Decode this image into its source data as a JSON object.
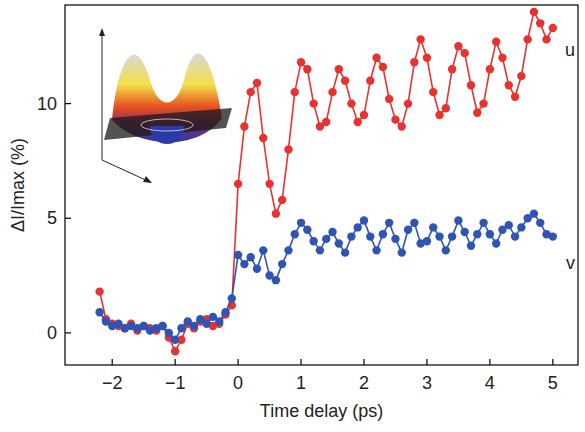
{
  "chart_data": {
    "type": "line",
    "x_label": "Time delay (ps)",
    "y_label": "ΔI/Imax (%)",
    "xlim": [
      -2.75,
      5.4
    ],
    "ylim": [
      -1.4,
      14.3
    ],
    "xticks": [
      -2,
      -1,
      0,
      1,
      2,
      3,
      4,
      5
    ],
    "yticks": [
      0,
      5,
      10
    ],
    "grid": false,
    "marker": "circle",
    "x": [
      -2.2,
      -2.1,
      -2.0,
      -1.9,
      -1.8,
      -1.7,
      -1.6,
      -1.5,
      -1.4,
      -1.3,
      -1.2,
      -1.1,
      -1.0,
      -0.9,
      -0.8,
      -0.7,
      -0.6,
      -0.5,
      -0.4,
      -0.3,
      -0.2,
      -0.1,
      0.0,
      0.1,
      0.2,
      0.3,
      0.4,
      0.5,
      0.6,
      0.7,
      0.8,
      0.9,
      1.0,
      1.1,
      1.2,
      1.3,
      1.4,
      1.5,
      1.6,
      1.7,
      1.8,
      1.9,
      2.0,
      2.1,
      2.2,
      2.3,
      2.4,
      2.5,
      2.6,
      2.7,
      2.8,
      2.9,
      3.0,
      3.1,
      3.2,
      3.3,
      3.4,
      3.5,
      3.6,
      3.7,
      3.8,
      3.9,
      4.0,
      4.1,
      4.2,
      4.3,
      4.4,
      4.5,
      4.6,
      4.7,
      4.8,
      4.9,
      5.0
    ],
    "series": [
      {
        "name": "u",
        "color": "#e8322f",
        "values": [
          1.8,
          0.6,
          0.4,
          0.3,
          0.2,
          0.4,
          0.1,
          0.3,
          0.2,
          0.1,
          0.3,
          -0.2,
          -0.8,
          -0.3,
          0.4,
          0.2,
          0.5,
          0.6,
          0.3,
          0.4,
          0.8,
          1.2,
          6.5,
          9.0,
          10.5,
          10.9,
          8.5,
          6.5,
          5.2,
          5.8,
          8.0,
          10.5,
          11.8,
          11.5,
          10.0,
          9.0,
          9.2,
          10.5,
          11.5,
          11.0,
          10.0,
          9.2,
          9.5,
          11.0,
          12.0,
          11.6,
          10.2,
          9.3,
          9.0,
          10.0,
          11.8,
          12.8,
          12.0,
          10.5,
          9.5,
          9.8,
          11.5,
          12.5,
          12.2,
          10.8,
          9.6,
          10.0,
          11.5,
          12.7,
          12.0,
          10.8,
          10.3,
          11.2,
          12.8,
          14.0,
          13.5,
          12.8,
          13.3
        ]
      },
      {
        "name": "v",
        "color": "#2f55b4",
        "values": [
          0.9,
          0.5,
          0.3,
          0.4,
          0.2,
          0.3,
          0.2,
          0.3,
          0.1,
          0.2,
          0.3,
          0.0,
          -0.3,
          0.2,
          0.5,
          0.3,
          0.6,
          0.4,
          0.7,
          0.5,
          0.9,
          1.5,
          3.4,
          3.0,
          3.3,
          2.8,
          3.6,
          2.5,
          2.3,
          3.0,
          3.6,
          4.3,
          4.8,
          4.5,
          4.0,
          3.6,
          4.1,
          4.4,
          3.9,
          3.5,
          4.2,
          4.6,
          4.9,
          4.2,
          3.6,
          4.3,
          4.8,
          4.1,
          3.5,
          4.5,
          4.8,
          3.9,
          4.0,
          4.6,
          4.2,
          3.6,
          4.2,
          4.9,
          4.4,
          3.8,
          4.3,
          4.8,
          4.3,
          3.9,
          4.5,
          4.7,
          4.2,
          4.6,
          5.0,
          5.2,
          4.8,
          4.3,
          4.2
        ]
      }
    ]
  }
}
